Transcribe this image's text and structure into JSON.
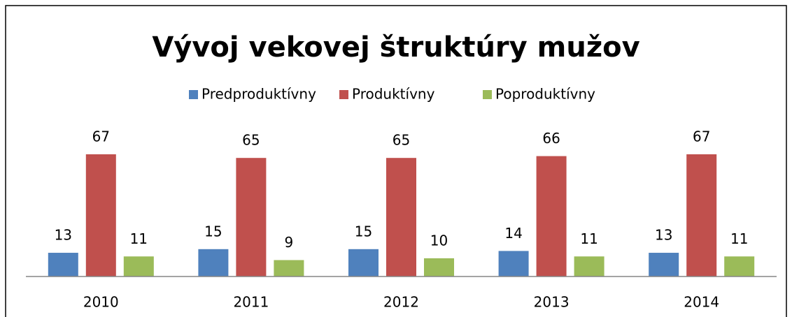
{
  "chart_data": {
    "type": "bar",
    "title": "Vývoj vekovej štruktúry mužov",
    "categories": [
      "2010",
      "2011",
      "2012",
      "2013",
      "2014"
    ],
    "series": [
      {
        "name": "Predproduktívny",
        "color": "#4f81bd",
        "values": [
          13,
          15,
          15,
          14,
          13
        ]
      },
      {
        "name": "Produktívny",
        "color": "#c0504d",
        "values": [
          67,
          65,
          65,
          66,
          67
        ]
      },
      {
        "name": "Poproduktívny",
        "color": "#9bbb59",
        "values": [
          11,
          9,
          10,
          11,
          11
        ]
      }
    ],
    "ylim": [
      0,
      80
    ],
    "legend": "top"
  }
}
